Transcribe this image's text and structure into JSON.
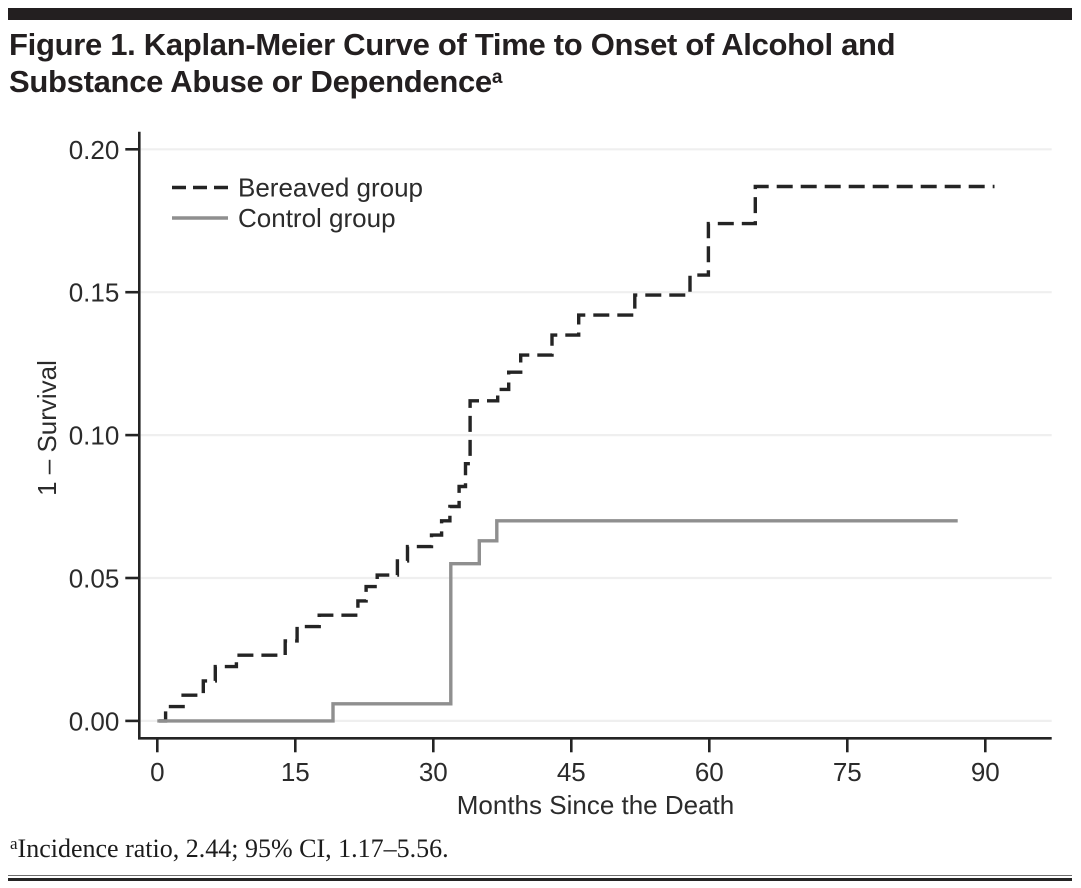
{
  "header": {
    "title_lines": [
      "Figure 1. Kaplan-Meier Curve of Time to Onset of Alcohol and",
      "Substance Abuse or Dependence"
    ],
    "title_superscript": "a"
  },
  "chart_data": {
    "type": "line",
    "subtype": "kaplan_meier_step",
    "title": "Figure 1. Kaplan-Meier Curve of Time to Onset of Alcohol and Substance Abuse or Dependence",
    "xlabel": "Months Since the Death",
    "ylabel": "1 – Survival",
    "xlim": [
      0,
      94
    ],
    "ylim": [
      0,
      0.2
    ],
    "x_ticks": [
      "0",
      "15",
      "30",
      "45",
      "60",
      "75",
      "90"
    ],
    "x_tick_values": [
      0,
      15,
      30,
      45,
      60,
      75,
      90
    ],
    "y_tick_labels": [
      "0.00",
      "0.05",
      "0.10",
      "0.15",
      "0.20"
    ],
    "y_tick_values": [
      0,
      0.05,
      0.1,
      0.15,
      0.2
    ],
    "grid": "horizontal-light",
    "legend_position": "inside-top-left",
    "series": [
      {
        "name": "Bereaved group",
        "line_style": "dashed",
        "color": "#242424",
        "start": [
          0.2,
          0.0
        ],
        "steps": [
          [
            0.9,
            0.005
          ],
          [
            2.8,
            0.009
          ],
          [
            5.0,
            0.014
          ],
          [
            6.3,
            0.019
          ],
          [
            8.6,
            0.023
          ],
          [
            13.9,
            0.028
          ],
          [
            15.2,
            0.033
          ],
          [
            17.6,
            0.037
          ],
          [
            21.8,
            0.042
          ],
          [
            22.7,
            0.047
          ],
          [
            23.9,
            0.051
          ],
          [
            26.1,
            0.056
          ],
          [
            27.2,
            0.061
          ],
          [
            29.8,
            0.065
          ],
          [
            30.9,
            0.07
          ],
          [
            31.8,
            0.075
          ],
          [
            32.8,
            0.082
          ],
          [
            33.5,
            0.09
          ],
          [
            34.0,
            0.112
          ],
          [
            37.0,
            0.116
          ],
          [
            38.2,
            0.122
          ],
          [
            39.5,
            0.128
          ],
          [
            42.9,
            0.135
          ],
          [
            45.8,
            0.142
          ],
          [
            51.9,
            0.149
          ],
          [
            57.9,
            0.156
          ],
          [
            59.9,
            0.174
          ],
          [
            65.0,
            0.187
          ]
        ],
        "end_time": 91
      },
      {
        "name": "Control group",
        "line_style": "solid",
        "color": "#8f8f8f",
        "start": [
          0,
          0.0
        ],
        "steps": [
          [
            19.1,
            0.006
          ],
          [
            31.9,
            0.055
          ],
          [
            35.0,
            0.063
          ],
          [
            36.9,
            0.07
          ]
        ],
        "end_time": 87
      }
    ]
  },
  "footnote": {
    "superscript": "a",
    "text": "Incidence ratio, 2.44; 95% CI, 1.17–5.56."
  }
}
